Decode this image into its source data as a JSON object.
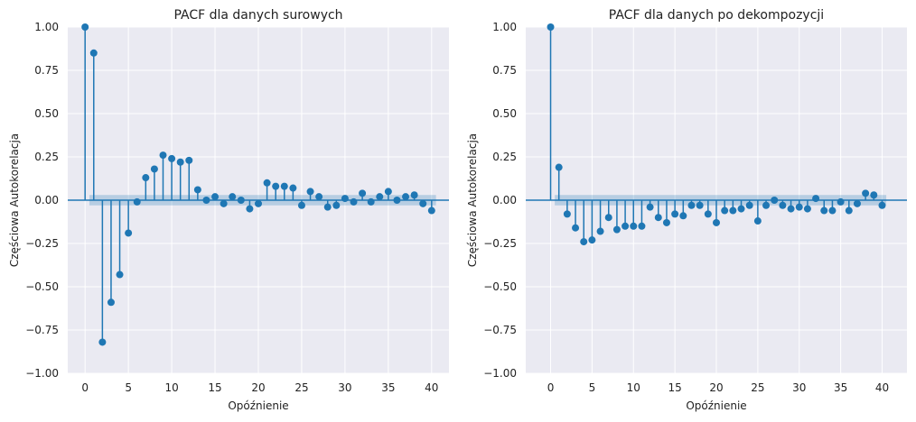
{
  "chart_data": [
    {
      "type": "stem",
      "title": "PACF dla danych surowych",
      "xlabel": "Opóźnienie",
      "ylabel": "Częściowa Autokorelacja",
      "xlim": [
        -2,
        42
      ],
      "ylim": [
        -1.0,
        1.0
      ],
      "xticks": [
        "0",
        "5",
        "10",
        "15",
        "20",
        "25",
        "30",
        "35",
        "40"
      ],
      "yticks": [
        "1.00",
        "0.75",
        "0.50",
        "0.25",
        "0.00",
        "−0.25",
        "−0.50",
        "−0.75",
        "−1.00"
      ],
      "confidence_band": [
        -0.03,
        0.03
      ],
      "lags": [
        0,
        1,
        2,
        3,
        4,
        5,
        6,
        7,
        8,
        9,
        10,
        11,
        12,
        13,
        14,
        15,
        16,
        17,
        18,
        19,
        20,
        21,
        22,
        23,
        24,
        25,
        26,
        27,
        28,
        29,
        30,
        31,
        32,
        33,
        34,
        35,
        36,
        37,
        38,
        39,
        40
      ],
      "values": [
        1.0,
        0.85,
        -0.82,
        -0.59,
        -0.43,
        -0.19,
        -0.01,
        0.13,
        0.18,
        0.26,
        0.24,
        0.22,
        0.23,
        0.06,
        0.0,
        0.02,
        -0.02,
        0.02,
        0.0,
        -0.05,
        -0.02,
        0.1,
        0.08,
        0.08,
        0.07,
        -0.03,
        0.05,
        0.02,
        -0.04,
        -0.03,
        0.01,
        -0.01,
        0.04,
        -0.01,
        0.02,
        0.05,
        0.0,
        0.02,
        0.03,
        -0.02,
        -0.06
      ],
      "grid": true,
      "color": "#1f77b4"
    },
    {
      "type": "stem",
      "title": "PACF dla danych po dekompozycji",
      "xlabel": "Opóźnienie",
      "ylabel": "Częściowa Autokorelacja",
      "xlim": [
        -3,
        43
      ],
      "ylim": [
        -1.0,
        1.0
      ],
      "xticks": [
        "0",
        "5",
        "10",
        "15",
        "20",
        "25",
        "30",
        "35",
        "40"
      ],
      "yticks": [
        "1.00",
        "0.75",
        "0.50",
        "0.25",
        "0.00",
        "−0.25",
        "−0.50",
        "−0.75",
        "−1.00"
      ],
      "confidence_band": [
        -0.03,
        0.03
      ],
      "lags": [
        0,
        1,
        2,
        3,
        4,
        5,
        6,
        7,
        8,
        9,
        10,
        11,
        12,
        13,
        14,
        15,
        16,
        17,
        18,
        19,
        20,
        21,
        22,
        23,
        24,
        25,
        26,
        27,
        28,
        29,
        30,
        31,
        32,
        33,
        34,
        35,
        36,
        37,
        38,
        39,
        40
      ],
      "values": [
        1.0,
        0.19,
        -0.08,
        -0.16,
        -0.24,
        -0.23,
        -0.18,
        -0.1,
        -0.17,
        -0.15,
        -0.15,
        -0.15,
        -0.04,
        -0.1,
        -0.13,
        -0.08,
        -0.09,
        -0.03,
        -0.03,
        -0.08,
        -0.13,
        -0.06,
        -0.06,
        -0.05,
        -0.03,
        -0.12,
        -0.03,
        0.0,
        -0.03,
        -0.05,
        -0.04,
        -0.05,
        0.01,
        -0.06,
        -0.06,
        -0.01,
        -0.06,
        -0.02,
        0.04,
        0.03,
        -0.03
      ],
      "grid": true,
      "color": "#1f77b4"
    }
  ]
}
